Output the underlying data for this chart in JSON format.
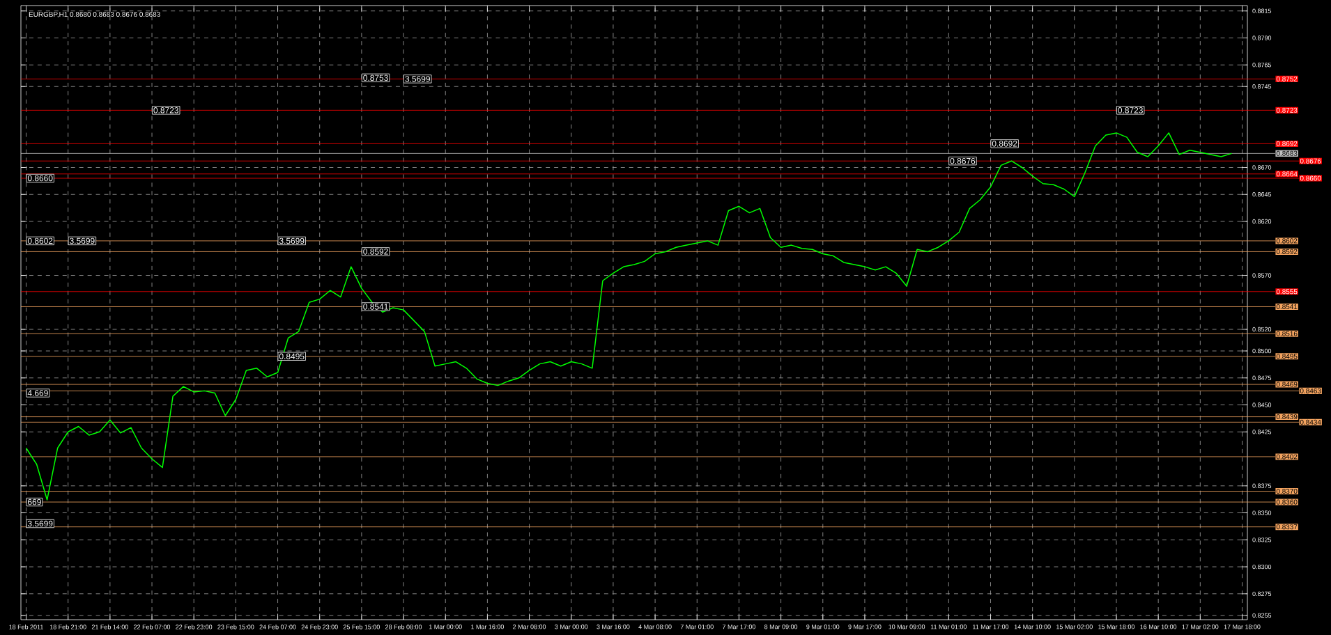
{
  "chart_data": {
    "type": "line",
    "title": "EURGBP,H1  0.8680 0.8683 0.8676 0.8683",
    "categories": [
      "18 Feb 2011",
      null,
      null,
      null,
      "18 Feb 21:00",
      null,
      null,
      null,
      "21 Feb 14:00",
      null,
      null,
      null,
      "22 Feb 07:00",
      null,
      null,
      null,
      "22 Feb 23:00",
      null,
      null,
      null,
      "23 Feb 15:00",
      null,
      null,
      null,
      "24 Feb 07:00",
      null,
      null,
      null,
      "24 Feb 23:00",
      null,
      null,
      null,
      "25 Feb 15:00",
      null,
      null,
      null,
      "28 Feb 08:00",
      null,
      null,
      null,
      "1 Mar 00:00",
      null,
      null,
      null,
      "1 Mar 16:00",
      null,
      null,
      null,
      "2 Mar 08:00",
      null,
      null,
      null,
      "3 Mar 00:00",
      null,
      null,
      null,
      "3 Mar 16:00",
      null,
      null,
      null,
      "4 Mar 08:00",
      null,
      null,
      null,
      "7 Mar 01:00",
      null,
      null,
      null,
      "7 Mar 17:00",
      null,
      null,
      null,
      "8 Mar 09:00",
      null,
      null,
      null,
      "9 Mar 01:00",
      null,
      null,
      null,
      "9 Mar 17:00",
      null,
      null,
      null,
      "10 Mar 09:00",
      null,
      null,
      null,
      "11 Mar 01:00",
      null,
      null,
      null,
      "11 Mar 17:00",
      null,
      null,
      null,
      "14 Mar 10:00",
      null,
      null,
      null,
      "15 Mar 02:00",
      null,
      null,
      null,
      "15 Mar 18:00",
      null,
      null,
      null,
      "16 Mar 10:00",
      null,
      null,
      null,
      "17 Mar 02:00",
      null,
      null,
      null,
      "17 Mar 18:00"
    ],
    "series": [
      {
        "color": "#00ff00",
        "values": [
          0.841,
          0.8395,
          0.8362,
          0.841,
          0.8425,
          0.843,
          0.8422,
          0.8425,
          0.8436,
          0.8424,
          0.8429,
          0.841,
          0.84,
          0.8392,
          0.8458,
          0.8467,
          0.8462,
          0.8463,
          0.8461,
          0.844,
          0.8455,
          0.8482,
          0.8484,
          0.8476,
          0.848,
          0.8512,
          0.8518,
          0.8545,
          0.8548,
          0.8556,
          0.855,
          0.8578,
          0.8558,
          0.8545,
          0.8536,
          0.854,
          0.8538,
          0.8528,
          0.8518,
          0.8486,
          0.8488,
          0.849,
          0.8484,
          0.8474,
          0.847,
          0.8468,
          0.8472,
          0.8475,
          0.8482,
          0.8488,
          0.849,
          0.8486,
          0.849,
          0.8488,
          0.8484,
          0.8565,
          0.8572,
          0.8578,
          0.858,
          0.8583,
          0.859,
          0.8592,
          0.8596,
          0.8598,
          0.86,
          0.8602,
          0.8598,
          0.863,
          0.8634,
          0.8628,
          0.8632,
          0.8605,
          0.8596,
          0.8598,
          0.8595,
          0.8594,
          0.859,
          0.8588,
          0.8582,
          0.858,
          0.8578,
          0.8575,
          0.8578,
          0.8572,
          0.856,
          0.8594,
          0.8592,
          0.8596,
          0.8602,
          0.861,
          0.8632,
          0.864,
          0.8652,
          0.8672,
          0.8676,
          0.867,
          0.8662,
          0.8655,
          0.8654,
          0.865,
          0.8643,
          0.8665,
          0.869,
          0.87,
          0.8702,
          0.8698,
          0.8684,
          0.868,
          0.869,
          0.8702,
          0.8682,
          0.8686,
          0.8684,
          0.8682,
          0.868,
          0.8683,
          null
        ]
      }
    ],
    "ylim": [
      0.8251,
      0.882
    ],
    "yticks": [
      {
        "value": 0.8815,
        "label": "0.8815"
      },
      {
        "value": 0.879,
        "label": "0.8790"
      },
      {
        "value": 0.8765,
        "label": "0.8765"
      },
      {
        "value": 0.8745,
        "label": "0.8745"
      },
      {
        "value": 0.867,
        "label": "0.8670"
      },
      {
        "value": 0.8645,
        "label": "0.8645"
      },
      {
        "value": 0.862,
        "label": "0.8620"
      },
      {
        "value": 0.857,
        "label": "0.8570"
      },
      {
        "value": 0.852,
        "label": "0.8520"
      },
      {
        "value": 0.85,
        "label": "0.8500"
      },
      {
        "value": 0.8475,
        "label": "0.8475"
      },
      {
        "value": 0.845,
        "label": "0.8450"
      },
      {
        "value": 0.8425,
        "label": "0.8425"
      },
      {
        "value": 0.8375,
        "label": "0.8375"
      },
      {
        "value": 0.835,
        "label": "0.8350"
      },
      {
        "value": 0.8325,
        "label": "0.8325"
      },
      {
        "value": 0.83,
        "label": "0.8300"
      },
      {
        "value": 0.8275,
        "label": "0.8275"
      },
      {
        "value": 0.8255,
        "label": "0.8255"
      }
    ],
    "grid": true,
    "marker": "none",
    "ref_lines": [
      {
        "axis": "y",
        "value": 0.8752,
        "label": "0.8752",
        "color": "#ff0000"
      },
      {
        "axis": "y",
        "value": 0.8723,
        "label": "0.8723",
        "color": "#ff0000"
      },
      {
        "axis": "y",
        "value": 0.8692,
        "label": "0.8692",
        "color": "#ff0000"
      },
      {
        "axis": "y",
        "value": 0.8683,
        "label": "0.8683",
        "color": "#c0c0c0"
      },
      {
        "axis": "y",
        "value": 0.8676,
        "label": "0.8676",
        "color": "#ff0000"
      },
      {
        "axis": "y",
        "value": 0.8664,
        "label": "0.8664",
        "color": "#ff0000"
      },
      {
        "axis": "y",
        "value": 0.866,
        "label": "0.8660",
        "color": "#ff0000"
      },
      {
        "axis": "y",
        "value": 0.8602,
        "label": "0.8602",
        "color": "#f4a460"
      },
      {
        "axis": "y",
        "value": 0.8592,
        "label": "0.8592",
        "color": "#f4a460"
      },
      {
        "axis": "y",
        "value": 0.8555,
        "label": "0.8555",
        "color": "#ff0000"
      },
      {
        "axis": "y",
        "value": 0.8541,
        "label": "0.8541",
        "color": "#f4a460"
      },
      {
        "axis": "y",
        "value": 0.8516,
        "label": "0.8516",
        "color": "#f4a460"
      },
      {
        "axis": "y",
        "value": 0.8495,
        "label": "0.8495",
        "color": "#f4a460"
      },
      {
        "axis": "y",
        "value": 0.8469,
        "label": "0.8469",
        "color": "#f4a460"
      },
      {
        "axis": "y",
        "value": 0.8463,
        "label": "0.8463",
        "color": "#f4a460"
      },
      {
        "axis": "y",
        "value": 0.8439,
        "label": "0.8439",
        "color": "#f4a460"
      },
      {
        "axis": "y",
        "value": 0.8434,
        "label": "0.8434",
        "color": "#f4a460"
      },
      {
        "axis": "y",
        "value": 0.8402,
        "label": "0.8402",
        "color": "#f4a460"
      },
      {
        "axis": "y",
        "value": 0.837,
        "label": "0.8370",
        "color": "#f4a460"
      },
      {
        "axis": "y",
        "value": 0.836,
        "label": "0.8360",
        "color": "#f4a460"
      },
      {
        "axis": "y",
        "value": 0.8337,
        "label": "0.8337",
        "color": "#f4a460"
      }
    ],
    "annotations": [
      {
        "text": "0.8723",
        "x": "22 Feb 07:00",
        "y": 0.8723
      },
      {
        "text": "0.8660",
        "x": "18 Feb 2011",
        "y": 0.866
      },
      {
        "text": "0.8602",
        "x": "18 Feb 2011",
        "y": 0.8602
      },
      {
        "text": "3.5699",
        "x": "18 Feb 21:00",
        "y": 0.8602
      },
      {
        "text": "3.5699",
        "x": "24 Feb 07:00",
        "y": 0.8602
      },
      {
        "text": "0.8592",
        "x": "25 Feb 15:00",
        "y": 0.8592
      },
      {
        "text": "0.8541",
        "x": "25 Feb 15:00",
        "y": 0.8541
      },
      {
        "text": "0.8495",
        "x": "24 Feb 07:00",
        "y": 0.8495
      },
      {
        "text": "0.8753",
        "x": "25 Feb 15:00",
        "y": 0.8753
      },
      {
        "text": "3.5699",
        "x": "28 Feb 08:00",
        "y": 0.8752
      },
      {
        "text": "0.8676",
        "x": "11 Mar 01:00",
        "y": 0.8676
      },
      {
        "text": "0.8692",
        "x": "11 Mar 17:00",
        "y": 0.8692
      },
      {
        "text": "0.8723",
        "x": "15 Mar 18:00",
        "y": 0.8723
      },
      {
        "text": "4.669",
        "x": "18 Feb 2011",
        "y": 0.8461
      },
      {
        "text": "669",
        "x": "18 Feb 2011",
        "y": 0.836
      },
      {
        "text": "3.5699",
        "x": "18 Feb 2011",
        "y": 0.834
      }
    ]
  }
}
